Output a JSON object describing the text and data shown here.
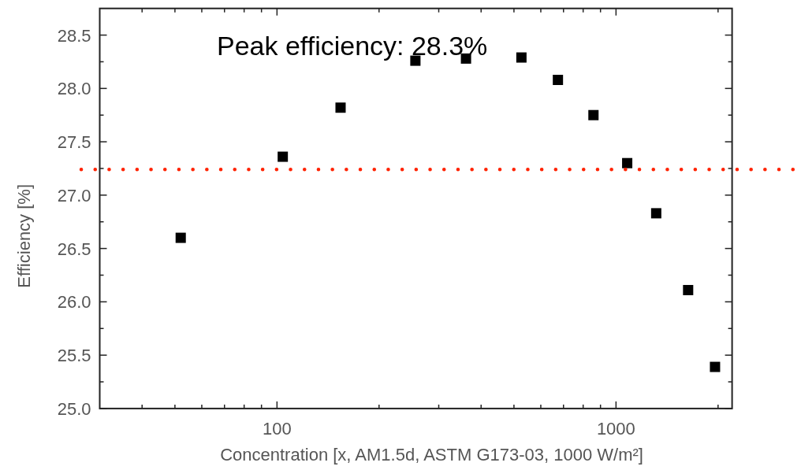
{
  "chart_data": {
    "type": "scatter",
    "xlabel": "Concentration [x, AM1.5d, ASTM G173-03, 1000 W/m²]",
    "ylabel": "Efficiency [%]",
    "annotations": [
      "Peak efficiency: 28.3%"
    ],
    "x": [
      52,
      104,
      154,
      256,
      361,
      526,
      674,
      858,
      1079,
      1314,
      1632,
      1959
    ],
    "series": [
      {
        "color": "#000000",
        "values": [
          26.6,
          27.36,
          27.82,
          28.26,
          28.28,
          28.29,
          28.08,
          27.75,
          27.3,
          26.83,
          26.11,
          25.39
        ]
      }
    ],
    "log": "x",
    "xlim": [
      30,
      2200
    ],
    "xticks": [
      {
        "value": 40,
        "label": null
      },
      {
        "value": 50,
        "label": null
      },
      {
        "value": 60,
        "label": null
      },
      {
        "value": 70,
        "label": null
      },
      {
        "value": 80,
        "label": null
      },
      {
        "value": 90,
        "label": null
      },
      100,
      {
        "value": 200,
        "label": null
      },
      {
        "value": 300,
        "label": null
      },
      {
        "value": 400,
        "label": null
      },
      {
        "value": 500,
        "label": null
      },
      {
        "value": 600,
        "label": null
      },
      {
        "value": 700,
        "label": null
      },
      {
        "value": 800,
        "label": null
      },
      {
        "value": 900,
        "label": null
      },
      1000,
      {
        "value": 2000,
        "label": null
      }
    ],
    "ylim": [
      25,
      28.75
    ],
    "yticks": [
      {
        "value": 25,
        "label": "25.0"
      },
      {
        "value": 25.25,
        "label": null
      },
      {
        "value": 25.5,
        "label": "25.5"
      },
      {
        "value": 25.75,
        "label": null
      },
      {
        "value": 26,
        "label": "26.0"
      },
      {
        "value": 26.25,
        "label": null
      },
      {
        "value": 26.5,
        "label": "26.5"
      },
      {
        "value": 26.75,
        "label": null
      },
      {
        "value": 27,
        "label": "27.0"
      },
      {
        "value": 27.25,
        "label": null
      },
      {
        "value": 27.5,
        "label": "27.5"
      },
      {
        "value": 27.75,
        "label": null
      },
      {
        "value": 28,
        "label": "28.0"
      },
      {
        "value": 28.25,
        "label": null
      },
      {
        "value": 28.5,
        "label": "28.5"
      }
    ],
    "ref_lines": [
      {
        "axis": "y",
        "value": 27.24,
        "color": "#ff2200",
        "line_style": "dotted"
      }
    ],
    "marker": "square",
    "grid": false
  }
}
